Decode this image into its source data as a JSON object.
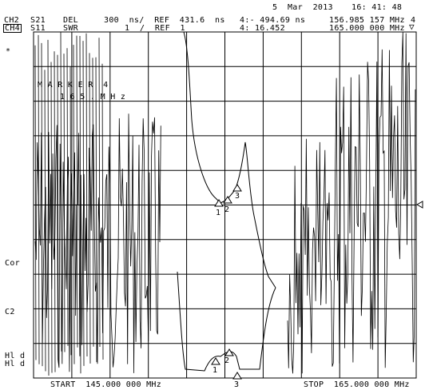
{
  "header": {
    "date": "5  Mar  2013",
    "time": "16: 41: 48",
    "ch_top": "CH2",
    "ch_bottom": "CH4",
    "param_top": "S21",
    "param_bottom": "S11",
    "format_top": "DEL",
    "format_bottom": "SWR",
    "scale_top": "300  ns/  REF  431.6  ns",
    "scale_bottom": "1  /  REF  1",
    "marker_top": "4:- 494.69 ns",
    "marker_bottom": "4: 16.452",
    "freq_top": "156.985 157 MHz",
    "freq_bottom": "165.000 000 MHz",
    "marker_index": "4"
  },
  "left_annotations": {
    "asterisk": "*",
    "cor": "Cor",
    "c2": "C2",
    "hld1": "Hl d",
    "hld2": "Hl d"
  },
  "marker_readout": "M A R K E R  4",
  "marker_readout2": "1 6 5 . M H z",
  "footer": {
    "start": "START  145.000 000 MHz",
    "stop": "STOP  165.000 000 MHz"
  },
  "marker_labels": {
    "upper": [
      "1",
      "2",
      "3"
    ],
    "lower": [
      "1",
      "2",
      "3"
    ]
  },
  "colors": {
    "trace": "#000000",
    "background": "#ffffff",
    "grid": "#000000"
  }
}
